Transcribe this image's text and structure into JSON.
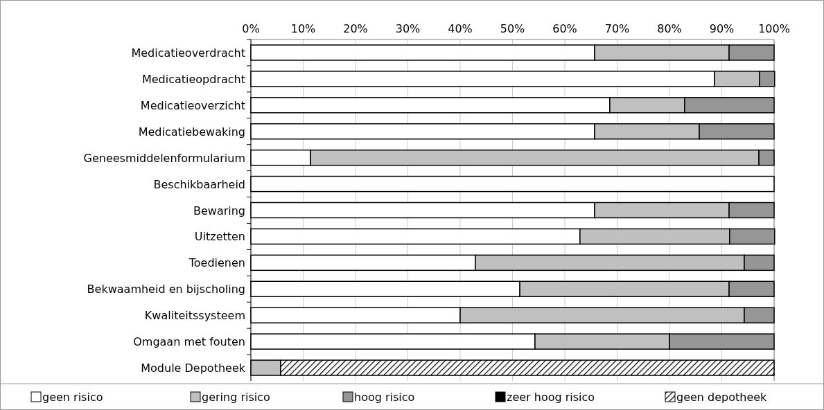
{
  "chart_data": {
    "type": "bar",
    "orientation": "horizontal",
    "stacked": true,
    "categories": [
      "Medicatieoverdracht",
      "Medicatieopdracht",
      "Medicatieoverzicht",
      "Medicatiebewaking",
      "Geneesmiddelenformularium",
      "Beschikbaarheid",
      "Bewaring",
      "Uitzetten",
      "Toedienen",
      "Bekwaamheid en bijscholing",
      "Kwaliteitssysteem",
      "Omgaan met fouten",
      "Module Depotheek"
    ],
    "series": [
      {
        "name": "geen risico",
        "color": "#ffffff",
        "values": [
          65.7,
          88.6,
          68.6,
          65.7,
          11.4,
          100,
          65.7,
          62.9,
          42.9,
          51.4,
          40.0,
          54.3,
          0
        ]
      },
      {
        "name": "gering risico",
        "color": "#c0c0c0",
        "values": [
          25.7,
          8.6,
          14.3,
          20.0,
          85.7,
          0,
          25.7,
          28.6,
          51.4,
          40.0,
          54.3,
          25.7,
          5.7
        ]
      },
      {
        "name": "hoog risico",
        "color": "#969696",
        "values": [
          8.6,
          2.9,
          17.1,
          14.3,
          2.9,
          0,
          8.6,
          8.6,
          5.7,
          8.6,
          5.7,
          20.0,
          0
        ]
      },
      {
        "name": "zeer hoog risico",
        "color": "#000000",
        "values": [
          0,
          0,
          0,
          0,
          0,
          0,
          0,
          0,
          0,
          0,
          0,
          0,
          0
        ]
      },
      {
        "name": "geen depotheek",
        "color": "#000000",
        "values": [
          0,
          0,
          0,
          0,
          0,
          0,
          0,
          0,
          0,
          0,
          0,
          0,
          94.3
        ]
      }
    ],
    "xlim": [
      0,
      100
    ],
    "xticks": [
      {
        "value": 0,
        "label": "0%"
      },
      {
        "value": 10,
        "label": "10%"
      },
      {
        "value": 20,
        "label": "20%"
      },
      {
        "value": 30,
        "label": "30%"
      },
      {
        "value": 40,
        "label": "40%"
      },
      {
        "value": 50,
        "label": "50%"
      },
      {
        "value": 60,
        "label": "60%"
      },
      {
        "value": 70,
        "label": "70%"
      },
      {
        "value": 80,
        "label": "80%"
      },
      {
        "value": 90,
        "label": "90%"
      },
      {
        "value": 100,
        "label": "100%"
      }
    ],
    "grid": "x",
    "legend": "bottom"
  }
}
